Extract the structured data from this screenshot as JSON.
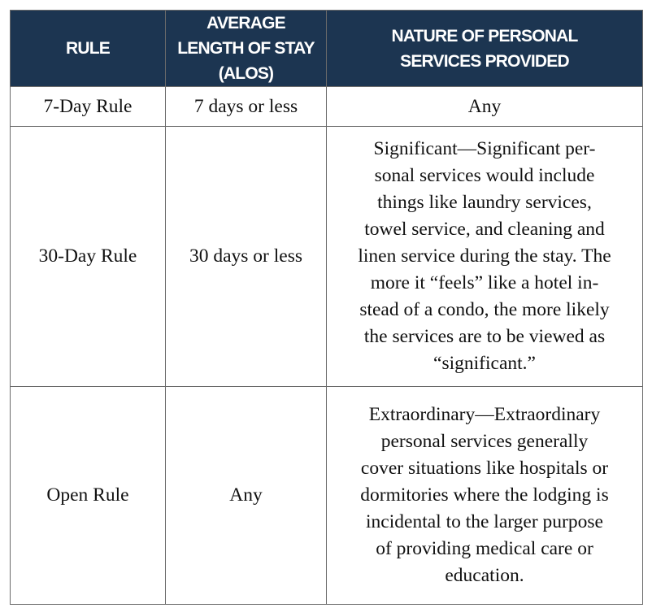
{
  "table": {
    "header": [
      "RULE",
      "AVERAGE LENGTH OF STAY (ALOS)",
      "NATURE OF PERSONAL SERVICES PROVIDED"
    ],
    "rows": [
      [
        "7-Day Rule",
        "7 days or less",
        [
          "Any"
        ]
      ],
      [
        "30-Day Rule",
        "30 days or less",
        [
          "Significant—Significant per-",
          "sonal services would include",
          "things like laundry services,",
          "towel service, and cleaning and",
          "linen service during the stay. The",
          "more it “feels” like a hotel in-",
          "stead of a condo, the more likely",
          "the services are to be viewed as",
          "“significant.”"
        ]
      ],
      [
        "Open Rule",
        "Any",
        [
          "Extraordinary—Extraordinary",
          "personal services generally",
          "cover situations like hospitals or",
          "dormitories where the lodging is",
          "incidental to the larger purpose",
          "of providing medical care or",
          "education."
        ]
      ]
    ]
  }
}
